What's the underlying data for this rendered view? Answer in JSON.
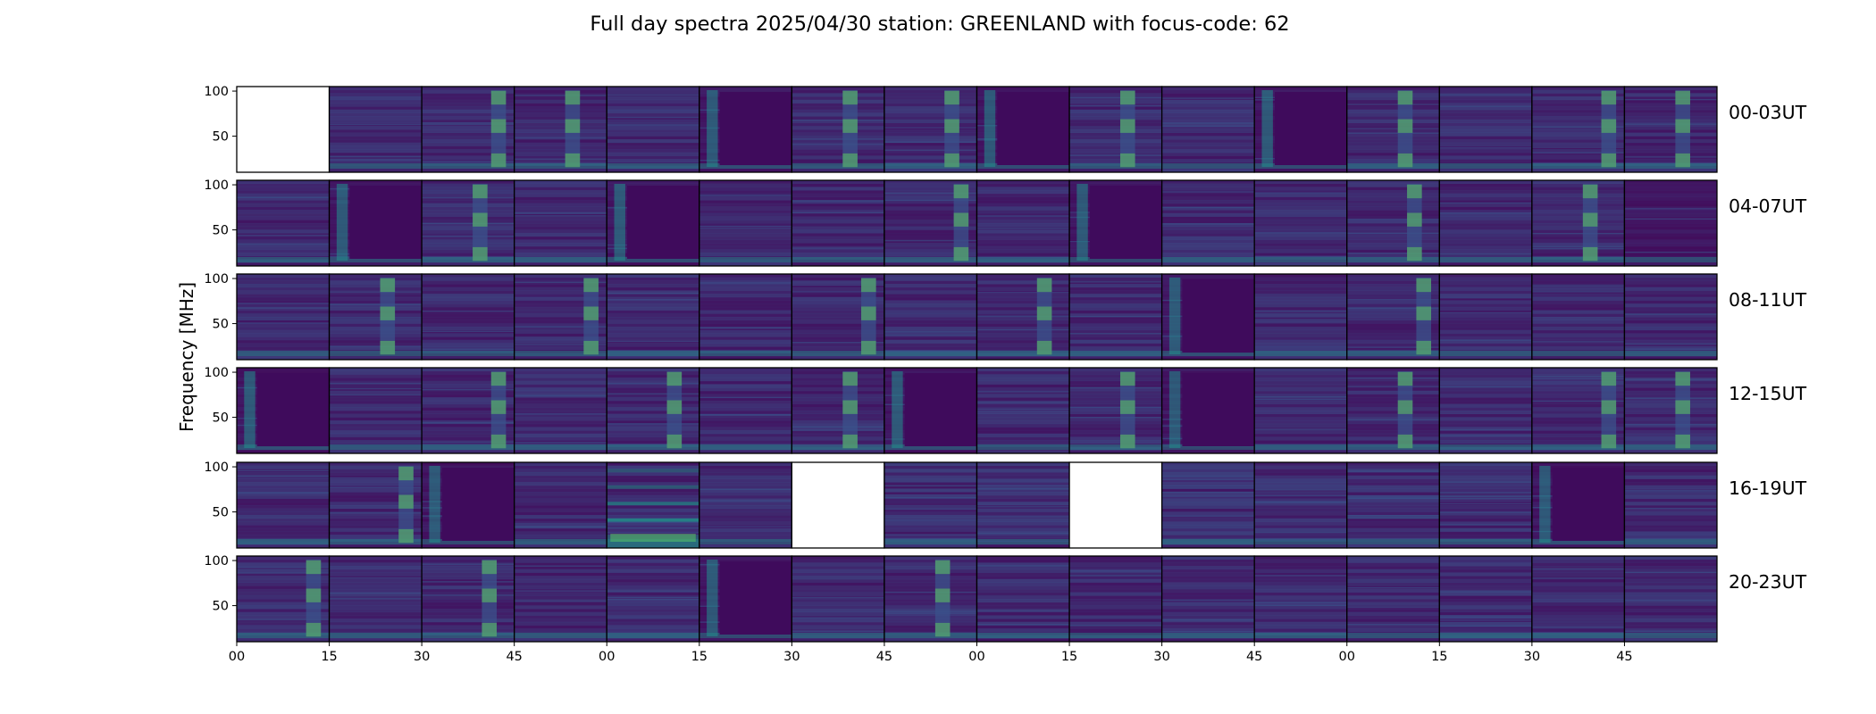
{
  "title": "Full day spectra 2025/04/30 station: GREENLAND with focus-code: 62",
  "ylabel": "Frequency [MHz]",
  "chart_data": {
    "type": "heatmap",
    "title": "Full day spectra 2025/04/30 station: GREENLAND with focus-code: 62",
    "ylabel": "Frequency [MHz]",
    "ylim": [
      10,
      105
    ],
    "y_ticks": [
      "100",
      "50"
    ],
    "y_tick_values": [
      100,
      50
    ],
    "x_ticks": [
      "00",
      "15",
      "30",
      "45",
      "00",
      "15",
      "30",
      "45",
      "00",
      "15",
      "30",
      "45",
      "00",
      "15",
      "30",
      "45"
    ],
    "colormap": "viridis",
    "rows": [
      {
        "label": "00-03UT",
        "panels": [
          "empty",
          "faint",
          "strip",
          "strip",
          "faint",
          "blocked",
          "strip",
          "strip",
          "blocked",
          "strip",
          "faint",
          "blocked",
          "strip",
          "faint",
          "strip",
          "strip"
        ]
      },
      {
        "label": "04-07UT",
        "panels": [
          "faint",
          "blocked",
          "strip",
          "faint",
          "blocked",
          "faint",
          "faint",
          "strip",
          "faint",
          "blocked",
          "faint",
          "faint",
          "strip",
          "faint",
          "strip",
          "dark"
        ]
      },
      {
        "label": "08-11UT",
        "panels": [
          "faint",
          "strip",
          "faint",
          "strip",
          "faint",
          "faint",
          "strip",
          "faint",
          "strip",
          "faint",
          "blocked",
          "faint",
          "strip",
          "faint",
          "faint",
          "faint"
        ]
      },
      {
        "label": "12-15UT",
        "panels": [
          "blocked",
          "faint",
          "strip",
          "faint",
          "strip",
          "faint",
          "strip",
          "blocked",
          "faint",
          "strip",
          "blocked",
          "faint",
          "strip",
          "faint",
          "strip",
          "strip"
        ]
      },
      {
        "label": "16-19UT",
        "panels": [
          "faint",
          "strip",
          "blocked",
          "faint",
          "bright",
          "faint",
          "empty",
          "busy",
          "busy",
          "empty",
          "busy",
          "busy",
          "busy",
          "busy",
          "blocked",
          "faint"
        ]
      },
      {
        "label": "20-23UT",
        "panels": [
          "strip",
          "faint",
          "strip",
          "faint",
          "faint",
          "blocked",
          "faint",
          "strip",
          "faint",
          "faint",
          "faint",
          "faint",
          "faint",
          "busy",
          "faint",
          "faint"
        ]
      }
    ]
  },
  "colors": {
    "background": "#440154",
    "low": "#46085c",
    "mid": "#3b528b",
    "high": "#21918c",
    "peak": "#5ec962",
    "blocked": "#3f0b5c",
    "empty": "#ffffff"
  }
}
